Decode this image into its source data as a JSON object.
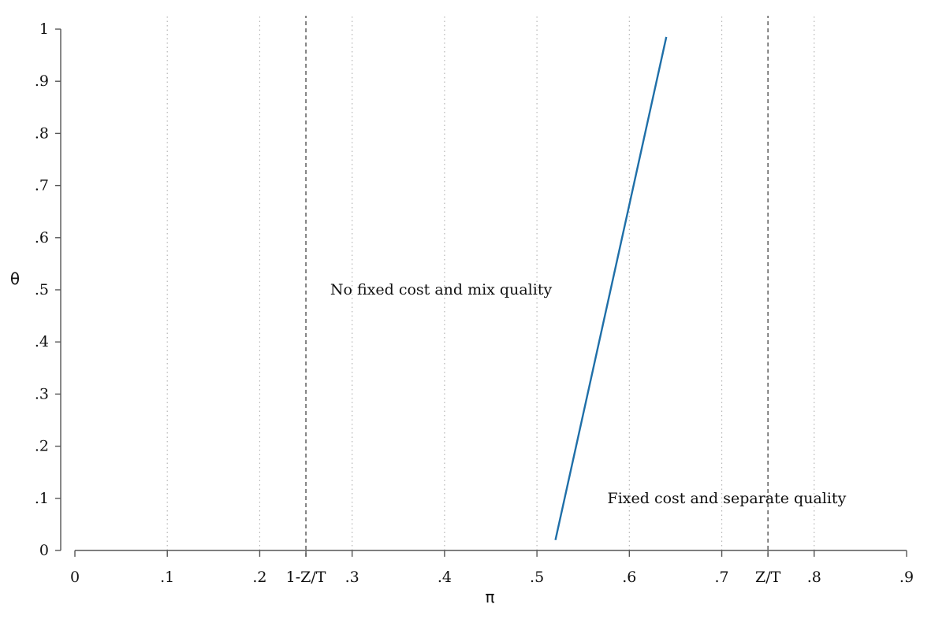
{
  "chart_data": {
    "type": "line",
    "xlabel": "π",
    "ylabel": "θ",
    "xlim": [
      0,
      0.9
    ],
    "ylim": [
      0,
      1
    ],
    "x_ticks": [
      {
        "value": 0,
        "label": "0"
      },
      {
        "value": 0.1,
        "label": ".1"
      },
      {
        "value": 0.2,
        "label": ".2"
      },
      {
        "value": 0.25,
        "label": "1-Z/T"
      },
      {
        "value": 0.3,
        "label": ".3"
      },
      {
        "value": 0.4,
        "label": ".4"
      },
      {
        "value": 0.5,
        "label": ".5"
      },
      {
        "value": 0.6,
        "label": ".6"
      },
      {
        "value": 0.7,
        "label": ".7"
      },
      {
        "value": 0.75,
        "label": "Z/T"
      },
      {
        "value": 0.8,
        "label": ".8"
      },
      {
        "value": 0.9,
        "label": ".9"
      }
    ],
    "y_ticks": [
      {
        "value": 0,
        "label": "0"
      },
      {
        "value": 0.1,
        "label": ".1"
      },
      {
        "value": 0.2,
        "label": ".2"
      },
      {
        "value": 0.3,
        "label": ".3"
      },
      {
        "value": 0.4,
        "label": ".4"
      },
      {
        "value": 0.5,
        "label": ".5"
      },
      {
        "value": 0.6,
        "label": ".6"
      },
      {
        "value": 0.7,
        "label": ".7"
      },
      {
        "value": 0.8,
        "label": ".8"
      },
      {
        "value": 0.9,
        "label": ".9"
      },
      {
        "value": 1,
        "label": "1"
      }
    ],
    "grid_x_dotted": [
      0.1,
      0.2,
      0.3,
      0.4,
      0.5,
      0.6,
      0.7,
      0.8
    ],
    "reference_lines_x": [
      0.25,
      0.75
    ],
    "series": [
      {
        "color": "#1f6fa8",
        "x": [
          0.52,
          0.64
        ],
        "y": [
          0.02,
          0.985
        ]
      }
    ],
    "annotations": [
      {
        "text": "No fixed cost and mix quality",
        "x": 0.4,
        "y": 0.5
      },
      {
        "text": "Fixed cost and separate quality",
        "x": 0.7,
        "y": 0.1
      }
    ]
  }
}
